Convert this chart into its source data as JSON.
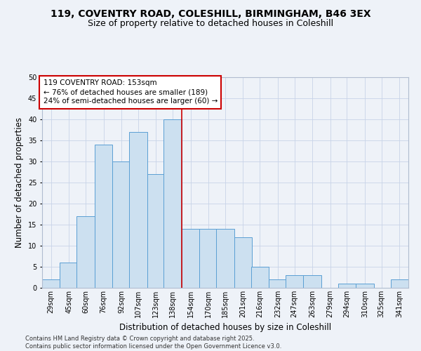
{
  "title": "119, COVENTRY ROAD, COLESHILL, BIRMINGHAM, B46 3EX",
  "subtitle": "Size of property relative to detached houses in Coleshill",
  "xlabel": "Distribution of detached houses by size in Coleshill",
  "ylabel": "Number of detached properties",
  "bins": [
    29,
    45,
    60,
    76,
    92,
    107,
    123,
    138,
    154,
    170,
    185,
    201,
    216,
    232,
    247,
    263,
    279,
    294,
    310,
    325,
    341
  ],
  "bin_labels": [
    "29sqm",
    "45sqm",
    "60sqm",
    "76sqm",
    "92sqm",
    "107sqm",
    "123sqm",
    "138sqm",
    "154sqm",
    "170sqm",
    "185sqm",
    "201sqm",
    "216sqm",
    "232sqm",
    "247sqm",
    "263sqm",
    "279sqm",
    "294sqm",
    "310sqm",
    "325sqm",
    "341sqm"
  ],
  "counts": [
    2,
    6,
    17,
    34,
    30,
    37,
    27,
    40,
    14,
    14,
    14,
    12,
    5,
    2,
    3,
    3,
    0,
    1,
    1,
    0,
    2
  ],
  "bar_color": "#cce0f0",
  "bar_edge_color": "#5a9fd4",
  "property_line_x": 154,
  "property_line_color": "#cc0000",
  "annotation_text": "119 COVENTRY ROAD: 153sqm\n← 76% of detached houses are smaller (189)\n24% of semi-detached houses are larger (60) →",
  "annotation_box_color": "#cc0000",
  "annotation_bg_color": "#ffffff",
  "ylim": [
    0,
    50
  ],
  "yticks": [
    0,
    5,
    10,
    15,
    20,
    25,
    30,
    35,
    40,
    45,
    50
  ],
  "grid_color": "#c8d4e8",
  "background_color": "#eef2f8",
  "footer_text": "Contains HM Land Registry data © Crown copyright and database right 2025.\nContains public sector information licensed under the Open Government Licence v3.0.",
  "title_fontsize": 10,
  "subtitle_fontsize": 9,
  "axis_fontsize": 8.5,
  "tick_fontsize": 7,
  "footer_fontsize": 6,
  "annotation_fontsize": 7.5
}
